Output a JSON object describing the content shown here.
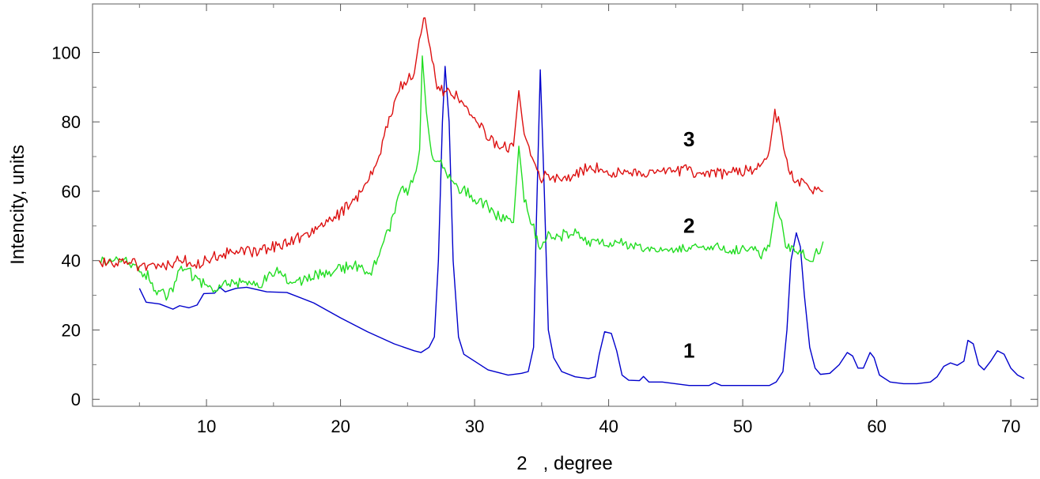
{
  "chart_data": {
    "type": "line",
    "xlabel": "2   , degree",
    "ylabel": "Intencity, units",
    "xlim": [
      1.5,
      72
    ],
    "ylim": [
      -2,
      114
    ],
    "xticks": [
      10,
      20,
      30,
      40,
      50,
      60,
      70
    ],
    "yticks": [
      0,
      20,
      40,
      60,
      80,
      100
    ],
    "grid": false,
    "series": [
      {
        "name": "1",
        "color": "#0000cc",
        "label_at": [
          46,
          12
        ],
        "points": [
          [
            5,
            32
          ],
          [
            5.5,
            28
          ],
          [
            6.5,
            27.5
          ],
          [
            7.5,
            26
          ],
          [
            8,
            27
          ],
          [
            8.7,
            26.4
          ],
          [
            9.3,
            27.2
          ],
          [
            9.8,
            30.5
          ],
          [
            10.6,
            30.6
          ],
          [
            11,
            32.3
          ],
          [
            11.4,
            31
          ],
          [
            12.2,
            32
          ],
          [
            13,
            32.3
          ],
          [
            14.5,
            31
          ],
          [
            16,
            30.8
          ],
          [
            18,
            27.8
          ],
          [
            20,
            23.5
          ],
          [
            22,
            19.5
          ],
          [
            24,
            16
          ],
          [
            25.5,
            14
          ],
          [
            26,
            13.5
          ],
          [
            26.6,
            15
          ],
          [
            27,
            18
          ],
          [
            27.3,
            40
          ],
          [
            27.6,
            80
          ],
          [
            27.8,
            96
          ],
          [
            28.1,
            80
          ],
          [
            28.4,
            40
          ],
          [
            28.8,
            18
          ],
          [
            29.2,
            13
          ],
          [
            30,
            11
          ],
          [
            31,
            8.5
          ],
          [
            32,
            7.5
          ],
          [
            32.5,
            7
          ],
          [
            33.5,
            7.5
          ],
          [
            34,
            8
          ],
          [
            34.4,
            15
          ],
          [
            34.6,
            50
          ],
          [
            34.9,
            95
          ],
          [
            35.2,
            60
          ],
          [
            35.5,
            20
          ],
          [
            35.9,
            12
          ],
          [
            36.5,
            8
          ],
          [
            37.5,
            6.5
          ],
          [
            38.5,
            6
          ],
          [
            39,
            6.5
          ],
          [
            39.3,
            13
          ],
          [
            39.7,
            19.5
          ],
          [
            40.2,
            19
          ],
          [
            40.6,
            14
          ],
          [
            41,
            7
          ],
          [
            41.5,
            5.5
          ],
          [
            42.3,
            5.4
          ],
          [
            42.6,
            6.6
          ],
          [
            43,
            5
          ],
          [
            44,
            5
          ],
          [
            46,
            4
          ],
          [
            47.5,
            4
          ],
          [
            47.9,
            4.8
          ],
          [
            48.4,
            4
          ],
          [
            50,
            4
          ],
          [
            52,
            4
          ],
          [
            52.5,
            5
          ],
          [
            53,
            8
          ],
          [
            53.3,
            20
          ],
          [
            53.6,
            40
          ],
          [
            54,
            48
          ],
          [
            54.3,
            44
          ],
          [
            54.6,
            30
          ],
          [
            55,
            15
          ],
          [
            55.4,
            9
          ],
          [
            55.8,
            7.2
          ],
          [
            56.5,
            7.5
          ],
          [
            57.2,
            10
          ],
          [
            57.8,
            13.5
          ],
          [
            58.2,
            12.5
          ],
          [
            58.6,
            9
          ],
          [
            59,
            9
          ],
          [
            59.5,
            13.5
          ],
          [
            59.8,
            12
          ],
          [
            60.2,
            7
          ],
          [
            61,
            5
          ],
          [
            62,
            4.5
          ],
          [
            63,
            4.5
          ],
          [
            64,
            5
          ],
          [
            64.5,
            6.5
          ],
          [
            65,
            9.5
          ],
          [
            65.5,
            10.5
          ],
          [
            66,
            9.8
          ],
          [
            66.5,
            11
          ],
          [
            66.8,
            17
          ],
          [
            67.2,
            16
          ],
          [
            67.6,
            10
          ],
          [
            68,
            8.5
          ],
          [
            68.5,
            11
          ],
          [
            69,
            14
          ],
          [
            69.5,
            13
          ],
          [
            70,
            9
          ],
          [
            70.5,
            7
          ],
          [
            71,
            6
          ]
        ]
      },
      {
        "name": "2",
        "color": "#22dd22",
        "label_at": [
          46,
          48
        ],
        "noise": 1.4,
        "points": [
          [
            2,
            40
          ],
          [
            3.5,
            39.5
          ],
          [
            4.5,
            38.5
          ],
          [
            5.5,
            36
          ],
          [
            6.3,
            31
          ],
          [
            7,
            29.5
          ],
          [
            7.5,
            32
          ],
          [
            8,
            37.5
          ],
          [
            8.7,
            37
          ],
          [
            9.5,
            33
          ],
          [
            10.5,
            32
          ],
          [
            12,
            34
          ],
          [
            14,
            33.5
          ],
          [
            15.5,
            37
          ],
          [
            16.5,
            33
          ],
          [
            18,
            36
          ],
          [
            19.5,
            37
          ],
          [
            21,
            38.5
          ],
          [
            22.3,
            37
          ],
          [
            23,
            43
          ],
          [
            23.8,
            51
          ],
          [
            24.3,
            59
          ],
          [
            25,
            60.5
          ],
          [
            25.5,
            64
          ],
          [
            25.9,
            72
          ],
          [
            26.1,
            99
          ],
          [
            26.4,
            83
          ],
          [
            26.8,
            70
          ],
          [
            27.5,
            68
          ],
          [
            28.5,
            62
          ],
          [
            29.5,
            59
          ],
          [
            30.5,
            57
          ],
          [
            31.5,
            54
          ],
          [
            32.5,
            51
          ],
          [
            32.9,
            51
          ],
          [
            33.3,
            73
          ],
          [
            33.7,
            58
          ],
          [
            34.3,
            50
          ],
          [
            35,
            43.5
          ],
          [
            35.5,
            47
          ],
          [
            36.5,
            47
          ],
          [
            37.5,
            48
          ],
          [
            38.5,
            46
          ],
          [
            40,
            45
          ],
          [
            42,
            44
          ],
          [
            44,
            43
          ],
          [
            46,
            44
          ],
          [
            48,
            44
          ],
          [
            50,
            43
          ],
          [
            51.5,
            42.5
          ],
          [
            52,
            44
          ],
          [
            52.5,
            57
          ],
          [
            52.9,
            51
          ],
          [
            53.2,
            45
          ],
          [
            54,
            43
          ],
          [
            55,
            40
          ],
          [
            55.5,
            42
          ],
          [
            56,
            45.5
          ]
        ]
      },
      {
        "name": "3",
        "color": "#dd1111",
        "label_at": [
          46,
          73
        ],
        "noise": 1.4,
        "points": [
          [
            2,
            40
          ],
          [
            3,
            39.5
          ],
          [
            4,
            40
          ],
          [
            5,
            38.5
          ],
          [
            6,
            38
          ],
          [
            7,
            38.5
          ],
          [
            8.3,
            40.5
          ],
          [
            9,
            38.5
          ],
          [
            10,
            40
          ],
          [
            12,
            42.5
          ],
          [
            14,
            43
          ],
          [
            16,
            45
          ],
          [
            18,
            48.5
          ],
          [
            20,
            54
          ],
          [
            21.5,
            59
          ],
          [
            22.5,
            66
          ],
          [
            23.5,
            79
          ],
          [
            24.5,
            90
          ],
          [
            25.5,
            94
          ],
          [
            26,
            107
          ],
          [
            26.3,
            110
          ],
          [
            26.7,
            100
          ],
          [
            27.2,
            90
          ],
          [
            28,
            88.5
          ],
          [
            29,
            86
          ],
          [
            30,
            80
          ],
          [
            31,
            76
          ],
          [
            32,
            72
          ],
          [
            32.9,
            73
          ],
          [
            33.3,
            89
          ],
          [
            33.7,
            76
          ],
          [
            34.3,
            69
          ],
          [
            35,
            64
          ],
          [
            36,
            64.5
          ],
          [
            37,
            64
          ],
          [
            38,
            66
          ],
          [
            39,
            67
          ],
          [
            40,
            65
          ],
          [
            42,
            65
          ],
          [
            44,
            66.5
          ],
          [
            46,
            66
          ],
          [
            48,
            65
          ],
          [
            50,
            66
          ],
          [
            51.5,
            67
          ],
          [
            52,
            72
          ],
          [
            52.4,
            83
          ],
          [
            52.8,
            78
          ],
          [
            53.3,
            68
          ],
          [
            54,
            62
          ],
          [
            54.5,
            63
          ],
          [
            55,
            61
          ],
          [
            56,
            60
          ]
        ]
      }
    ]
  }
}
